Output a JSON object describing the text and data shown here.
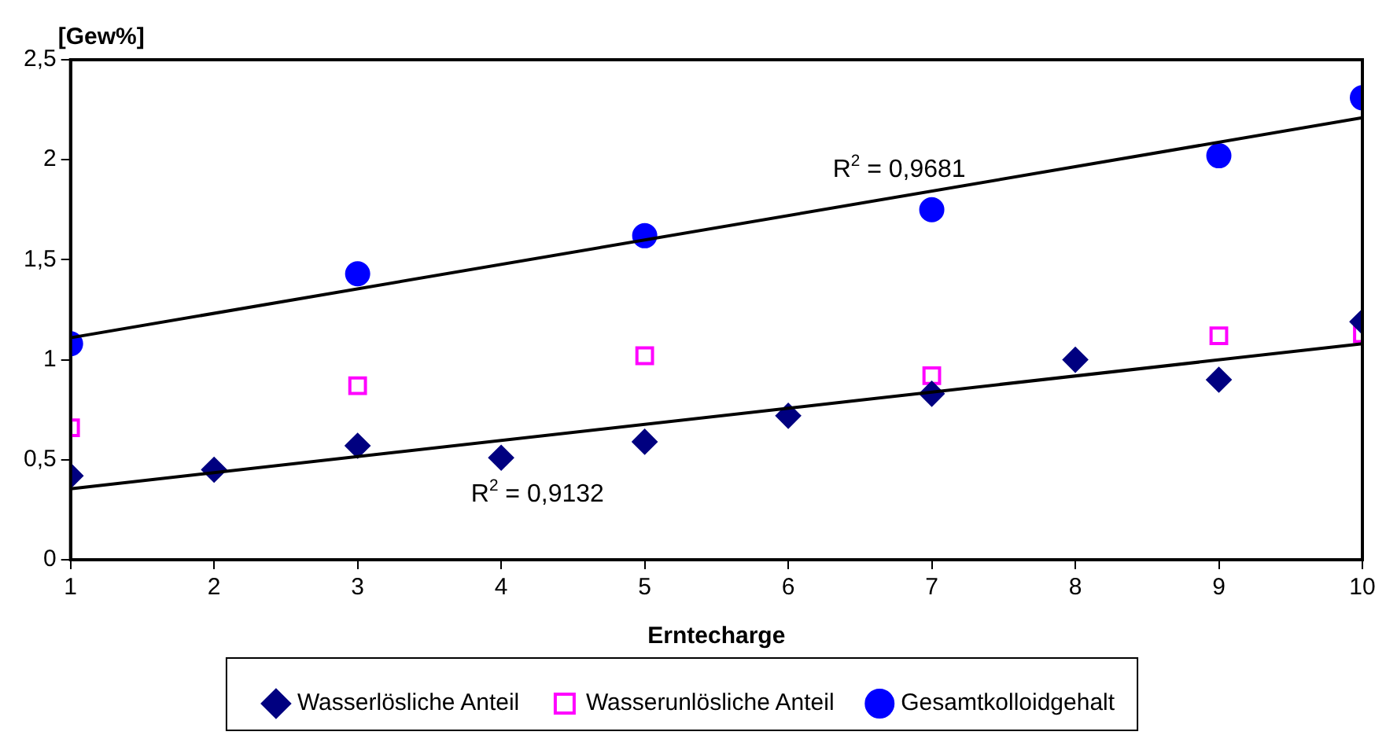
{
  "chart_data": {
    "type": "scatter",
    "ylabel": "[Gew%]",
    "xlabel": "Erntecharge",
    "xlim": [
      1,
      10
    ],
    "xticks": [
      1,
      2,
      3,
      4,
      5,
      6,
      7,
      8,
      9,
      10
    ],
    "ylim": [
      0,
      2.5
    ],
    "yticks": [
      0,
      {
        "value": 0.5,
        "label": "0,5"
      },
      1,
      {
        "value": 1.5,
        "label": "1,5"
      },
      2,
      {
        "value": 2.5,
        "label": "2,5"
      }
    ],
    "grid": false,
    "legend": "bottom",
    "series": [
      {
        "name": "Wasserlösliche Anteil",
        "color": "#000080",
        "marker": "diamond",
        "x": [
          1,
          2,
          3,
          4,
          5,
          6,
          7,
          8,
          9,
          10
        ],
        "values": [
          0.42,
          0.45,
          0.57,
          0.51,
          0.59,
          0.72,
          0.83,
          1.0,
          0.9,
          1.19
        ]
      },
      {
        "name": "Wasserunlösliche Anteil",
        "color": "#ff00ff",
        "marker": "square",
        "x": [
          1,
          3,
          5,
          7,
          9,
          10
        ],
        "values": [
          0.66,
          0.87,
          1.02,
          0.92,
          1.12,
          1.13
        ]
      },
      {
        "name": "Gesamtkolloidgehalt",
        "color": "#0000ff",
        "marker": "circle",
        "x": [
          1,
          3,
          5,
          7,
          9,
          10
        ],
        "values": [
          1.08,
          1.43,
          1.62,
          1.75,
          2.02,
          2.31
        ]
      },
      {
        "type": "line",
        "color": "#000000",
        "marker": "none",
        "x": [
          1,
          10
        ],
        "values": [
          0.355,
          1.08
        ]
      },
      {
        "type": "line",
        "color": "#000000",
        "marker": "none",
        "x": [
          1,
          10
        ],
        "values": [
          1.11,
          2.21
        ]
      }
    ],
    "annotations": [
      "R$^{2}$ = 0,9132",
      "R$^{2}$ = 0,9681"
    ]
  }
}
